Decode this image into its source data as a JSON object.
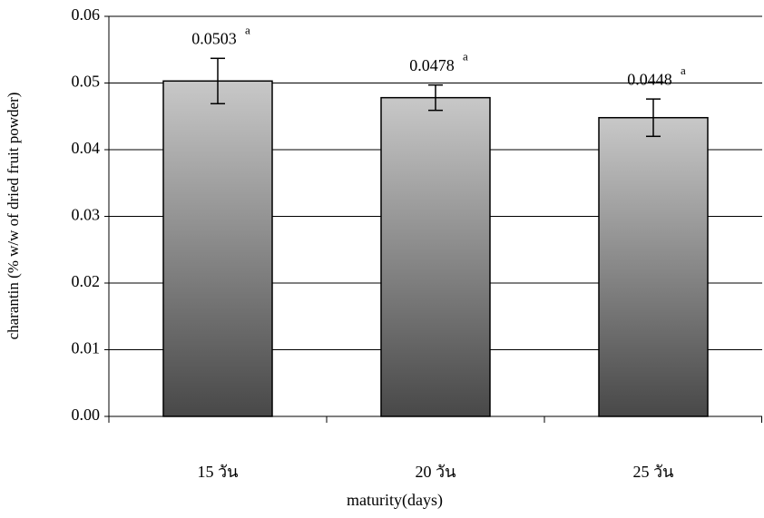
{
  "chart_data": {
    "type": "bar",
    "xlabel": "maturity(days)",
    "ylabel": "charantin (% w/w of dried fruit powder)",
    "categories": [
      "15 วัน",
      "20 วัน",
      "25 วัน"
    ],
    "values": [
      0.0503,
      0.0478,
      0.0448
    ],
    "errors": [
      0.0034,
      0.0019,
      0.0028
    ],
    "significance": [
      "a",
      "a",
      "a"
    ],
    "color": [
      "#c8c8c8",
      "#484848"
    ],
    "ylim": [
      0,
      0.06
    ],
    "yticks": [
      {
        "value": 0,
        "label": "0.00"
      },
      0.01,
      0.02,
      0.03,
      0.04,
      0.05,
      0.06
    ],
    "grid": true
  }
}
